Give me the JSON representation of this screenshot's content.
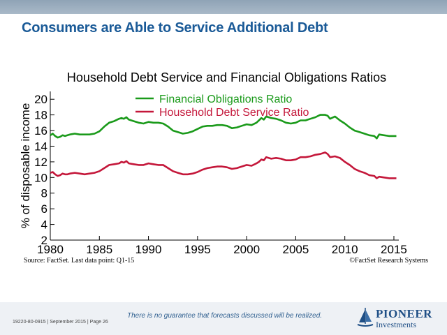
{
  "slide": {
    "headline": "Consumers are Able to Service Additional Debt",
    "source": "Source: FactSet. Last data point: Q1-15",
    "copyright": "©FactSet Research Systems",
    "disclaimer": "There is no guarantee that forecasts discussed will be realized.",
    "doc_info": "19220-80-0915 | September 2015 | Page 26",
    "logo": {
      "name": "PIONEER",
      "subtitle": "Investments",
      "mark": "ship-sail-icon",
      "color": "#1f4f86"
    },
    "header_bar_color": "#9aadbf",
    "headline_color": "#1a5a97"
  },
  "chart_data": {
    "type": "line",
    "title": "Household Debt Service and Financial Obligations Ratios",
    "xlabel": "",
    "ylabel": "% of disposable income",
    "xlim": [
      1980,
      2015.5
    ],
    "ylim": [
      2,
      21
    ],
    "x_ticks": [
      1980,
      1985,
      1990,
      1995,
      2000,
      2005,
      2010,
      2015
    ],
    "y_ticks": [
      2,
      4,
      6,
      8,
      10,
      12,
      14,
      16,
      18,
      20
    ],
    "grid": false,
    "legend_position": "top-center",
    "series": [
      {
        "name": "Financial Obligations Ratio",
        "color": "#1a9a1a",
        "points": [
          [
            1980.0,
            15.4
          ],
          [
            1980.25,
            15.6
          ],
          [
            1980.5,
            15.3
          ],
          [
            1980.75,
            15.1
          ],
          [
            1981.0,
            15.2
          ],
          [
            1981.25,
            15.4
          ],
          [
            1981.5,
            15.3
          ],
          [
            1981.75,
            15.4
          ],
          [
            1982.0,
            15.5
          ],
          [
            1982.5,
            15.6
          ],
          [
            1983.0,
            15.5
          ],
          [
            1983.5,
            15.5
          ],
          [
            1984.0,
            15.5
          ],
          [
            1984.5,
            15.6
          ],
          [
            1985.0,
            15.9
          ],
          [
            1985.5,
            16.5
          ],
          [
            1986.0,
            17.0
          ],
          [
            1986.5,
            17.2
          ],
          [
            1987.0,
            17.5
          ],
          [
            1987.25,
            17.6
          ],
          [
            1987.5,
            17.5
          ],
          [
            1987.75,
            17.7
          ],
          [
            1988.0,
            17.4
          ],
          [
            1988.5,
            17.2
          ],
          [
            1989.0,
            17.0
          ],
          [
            1989.5,
            16.9
          ],
          [
            1990.0,
            17.1
          ],
          [
            1990.5,
            17.0
          ],
          [
            1991.0,
            17.0
          ],
          [
            1991.5,
            16.9
          ],
          [
            1992.0,
            16.5
          ],
          [
            1992.5,
            16.0
          ],
          [
            1993.0,
            15.8
          ],
          [
            1993.5,
            15.6
          ],
          [
            1994.0,
            15.7
          ],
          [
            1994.5,
            15.9
          ],
          [
            1995.0,
            16.2
          ],
          [
            1995.5,
            16.5
          ],
          [
            1996.0,
            16.6
          ],
          [
            1996.5,
            16.6
          ],
          [
            1997.0,
            16.7
          ],
          [
            1997.5,
            16.7
          ],
          [
            1998.0,
            16.6
          ],
          [
            1998.5,
            16.3
          ],
          [
            1999.0,
            16.4
          ],
          [
            1999.5,
            16.6
          ],
          [
            2000.0,
            16.8
          ],
          [
            2000.5,
            16.7
          ],
          [
            2001.0,
            17.0
          ],
          [
            2001.25,
            17.3
          ],
          [
            2001.5,
            17.6
          ],
          [
            2001.75,
            17.4
          ],
          [
            2002.0,
            17.8
          ],
          [
            2002.5,
            17.6
          ],
          [
            2003.0,
            17.5
          ],
          [
            2003.5,
            17.3
          ],
          [
            2004.0,
            17.0
          ],
          [
            2004.5,
            16.9
          ],
          [
            2005.0,
            17.0
          ],
          [
            2005.5,
            17.3
          ],
          [
            2006.0,
            17.3
          ],
          [
            2006.5,
            17.5
          ],
          [
            2007.0,
            17.7
          ],
          [
            2007.5,
            18.0
          ],
          [
            2008.0,
            18.0
          ],
          [
            2008.25,
            17.9
          ],
          [
            2008.5,
            17.5
          ],
          [
            2009.0,
            17.8
          ],
          [
            2009.5,
            17.3
          ],
          [
            2010.0,
            16.9
          ],
          [
            2010.5,
            16.4
          ],
          [
            2011.0,
            16.0
          ],
          [
            2011.5,
            15.8
          ],
          [
            2012.0,
            15.6
          ],
          [
            2012.5,
            15.4
          ],
          [
            2013.0,
            15.3
          ],
          [
            2013.25,
            15.0
          ],
          [
            2013.5,
            15.5
          ],
          [
            2014.0,
            15.4
          ],
          [
            2014.5,
            15.3
          ],
          [
            2015.0,
            15.3
          ],
          [
            2015.25,
            15.3
          ]
        ]
      },
      {
        "name": "Household Debt Service Ratio",
        "color": "#c4173a",
        "points": [
          [
            1980.0,
            10.6
          ],
          [
            1980.25,
            10.7
          ],
          [
            1980.5,
            10.4
          ],
          [
            1980.75,
            10.2
          ],
          [
            1981.0,
            10.3
          ],
          [
            1981.25,
            10.5
          ],
          [
            1981.5,
            10.4
          ],
          [
            1981.75,
            10.4
          ],
          [
            1982.0,
            10.5
          ],
          [
            1982.5,
            10.6
          ],
          [
            1983.0,
            10.5
          ],
          [
            1983.5,
            10.4
          ],
          [
            1984.0,
            10.5
          ],
          [
            1984.5,
            10.6
          ],
          [
            1985.0,
            10.8
          ],
          [
            1985.5,
            11.2
          ],
          [
            1986.0,
            11.6
          ],
          [
            1986.5,
            11.7
          ],
          [
            1987.0,
            11.8
          ],
          [
            1987.25,
            12.0
          ],
          [
            1987.5,
            11.9
          ],
          [
            1987.75,
            12.1
          ],
          [
            1988.0,
            11.8
          ],
          [
            1988.5,
            11.7
          ],
          [
            1989.0,
            11.6
          ],
          [
            1989.5,
            11.6
          ],
          [
            1990.0,
            11.8
          ],
          [
            1990.5,
            11.7
          ],
          [
            1991.0,
            11.6
          ],
          [
            1991.5,
            11.6
          ],
          [
            1992.0,
            11.2
          ],
          [
            1992.5,
            10.8
          ],
          [
            1993.0,
            10.6
          ],
          [
            1993.5,
            10.4
          ],
          [
            1994.0,
            10.4
          ],
          [
            1994.5,
            10.5
          ],
          [
            1995.0,
            10.7
          ],
          [
            1995.5,
            11.0
          ],
          [
            1996.0,
            11.2
          ],
          [
            1996.5,
            11.3
          ],
          [
            1997.0,
            11.4
          ],
          [
            1997.5,
            11.4
          ],
          [
            1998.0,
            11.3
          ],
          [
            1998.5,
            11.1
          ],
          [
            1999.0,
            11.2
          ],
          [
            1999.5,
            11.4
          ],
          [
            2000.0,
            11.6
          ],
          [
            2000.5,
            11.5
          ],
          [
            2001.0,
            11.8
          ],
          [
            2001.25,
            12.0
          ],
          [
            2001.5,
            12.3
          ],
          [
            2001.75,
            12.2
          ],
          [
            2002.0,
            12.6
          ],
          [
            2002.5,
            12.4
          ],
          [
            2003.0,
            12.5
          ],
          [
            2003.5,
            12.4
          ],
          [
            2004.0,
            12.2
          ],
          [
            2004.5,
            12.2
          ],
          [
            2005.0,
            12.3
          ],
          [
            2005.5,
            12.6
          ],
          [
            2006.0,
            12.6
          ],
          [
            2006.5,
            12.7
          ],
          [
            2007.0,
            12.9
          ],
          [
            2007.5,
            13.0
          ],
          [
            2008.0,
            13.2
          ],
          [
            2008.25,
            13.0
          ],
          [
            2008.5,
            12.6
          ],
          [
            2009.0,
            12.7
          ],
          [
            2009.5,
            12.5
          ],
          [
            2010.0,
            12.0
          ],
          [
            2010.5,
            11.6
          ],
          [
            2011.0,
            11.1
          ],
          [
            2011.5,
            10.8
          ],
          [
            2012.0,
            10.6
          ],
          [
            2012.5,
            10.3
          ],
          [
            2013.0,
            10.2
          ],
          [
            2013.25,
            9.9
          ],
          [
            2013.5,
            10.1
          ],
          [
            2014.0,
            10.0
          ],
          [
            2014.5,
            9.9
          ],
          [
            2015.0,
            9.9
          ],
          [
            2015.25,
            9.9
          ]
        ]
      }
    ]
  }
}
